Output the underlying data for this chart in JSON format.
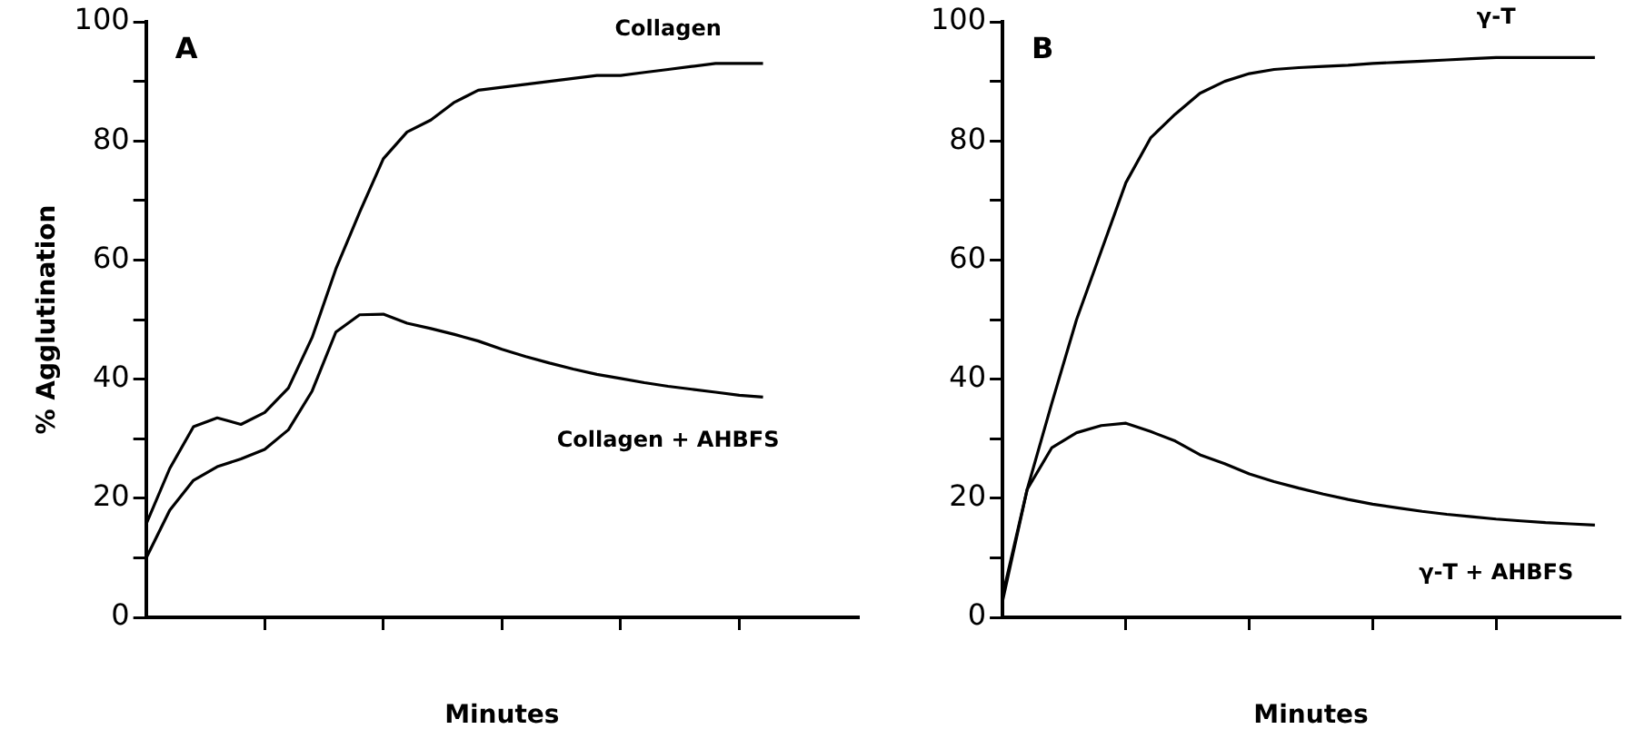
{
  "chart_data": [
    {
      "type": "line",
      "title": "A",
      "xlabel": "Minutes",
      "ylabel": "% Agglutination",
      "categories": [
        null,
        null,
        null,
        null,
        null,
        null,
        null,
        null,
        null,
        null,
        null,
        null,
        null,
        null,
        null,
        null,
        null,
        null,
        null,
        null,
        null,
        null,
        null,
        null,
        null,
        null,
        null,
        null,
        null,
        null,
        null
      ],
      "ylim": [
        0,
        100
      ],
      "yticks": [
        0,
        {
          "value": 10,
          "label": null
        },
        20,
        {
          "value": 30,
          "label": null
        },
        40,
        {
          "value": 50,
          "label": null
        },
        60,
        {
          "value": 70,
          "label": null
        },
        80,
        {
          "value": 90,
          "label": null
        },
        100
      ],
      "grid": false,
      "legend": false,
      "marker": "none",
      "line_style": "solid",
      "series": [
        {
          "name": "Collagen",
          "color": "#000000",
          "values": [
            15.6,
            25,
            32,
            33.5,
            32.4,
            34.4,
            38.5,
            47,
            58.5,
            68,
            77,
            81.5,
            83.5,
            86.5,
            88.5,
            89,
            89.5,
            90,
            90.5,
            91,
            91,
            91.5,
            92,
            92.5,
            93,
            93,
            93,
            null,
            null,
            null,
            null
          ]
        },
        {
          "name": "Collagen + AHBFS",
          "color": "#000000",
          "values": [
            9.9,
            18,
            23,
            25.3,
            26.6,
            28.2,
            31.5,
            38,
            47.9,
            50.8,
            50.9,
            49.4,
            48.5,
            47.5,
            46.4,
            45,
            43.8,
            42.7,
            41.7,
            40.8,
            40.1,
            39.4,
            38.8,
            38.3,
            37.8,
            37.3,
            37,
            null,
            null,
            null,
            null
          ]
        }
      ]
    },
    {
      "type": "line",
      "title": "B",
      "xlabel": "Minutes",
      "categories": [
        null,
        null,
        null,
        null,
        null,
        null,
        null,
        null,
        null,
        null,
        null,
        null,
        null,
        null,
        null,
        null,
        null,
        null,
        null,
        null,
        null,
        null,
        null,
        null,
        null,
        null
      ],
      "ylim": [
        0,
        100
      ],
      "yticks": [
        0,
        {
          "value": 10,
          "label": null
        },
        20,
        {
          "value": 30,
          "label": null
        },
        40,
        {
          "value": 50,
          "label": null
        },
        60,
        {
          "value": 70,
          "label": null
        },
        80,
        {
          "value": 90,
          "label": null
        },
        100
      ],
      "grid": false,
      "legend": false,
      "marker": "none",
      "line_style": "solid",
      "series": [
        {
          "name": "γ-T",
          "color": "#000000",
          "values": [
            2.7,
            21.5,
            36,
            50,
            61.5,
            73,
            80.5,
            84.5,
            88,
            90,
            91.3,
            92,
            92.3,
            92.5,
            92.7,
            93,
            93.2,
            93.4,
            93.6,
            93.8,
            94,
            94,
            94,
            94,
            94,
            null
          ]
        },
        {
          "name": "γ-T + AHBFS",
          "color": "#000000",
          "values": [
            3.6,
            21.5,
            28.5,
            31,
            32.2,
            32.6,
            31.2,
            29.6,
            27.3,
            25.8,
            24.1,
            22.8,
            21.7,
            20.7,
            19.8,
            19,
            18.4,
            17.8,
            17.3,
            16.9,
            16.5,
            16.2,
            15.9,
            15.7,
            15.5,
            null
          ]
        }
      ]
    }
  ]
}
